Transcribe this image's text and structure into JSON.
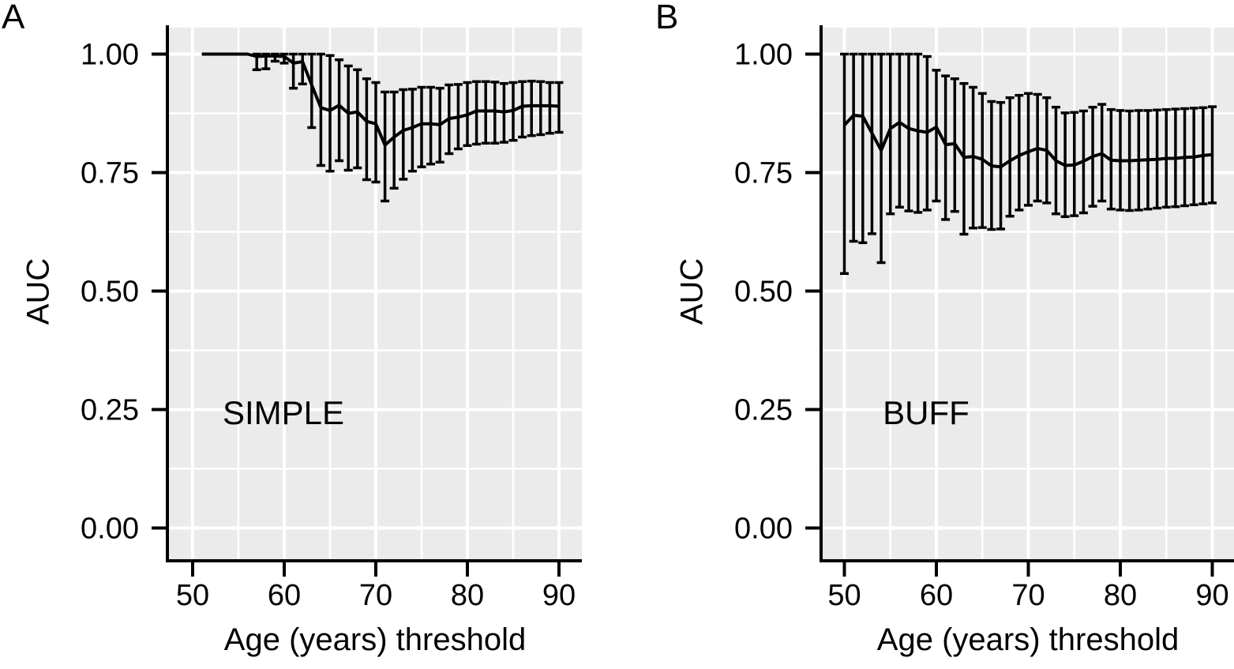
{
  "figure": {
    "background": "#ffffff",
    "panel_background": "#ebebeb",
    "gridline_color": "#ffffff",
    "line_color": "#000000",
    "text_color": "#000000"
  },
  "chart_data": [
    {
      "type": "line",
      "panel_label": "A",
      "annotation": "SIMPLE",
      "xlabel": "Age (years) threshold",
      "ylabel": "AUC",
      "x_tick_values": [
        50,
        60,
        70,
        80,
        90
      ],
      "x_minor_values": [
        55,
        65,
        75,
        85
      ],
      "y_tick_values": [
        0,
        0.25,
        0.5,
        0.75,
        1.0
      ],
      "y_tick_labels": [
        "0.00",
        "0.25",
        "0.50",
        "0.75",
        "1.00"
      ],
      "y_minor_values": [
        0.125,
        0.375,
        0.625,
        0.875
      ],
      "xlim": [
        50,
        90
      ],
      "ylim": [
        0,
        1
      ],
      "grid": true,
      "legend": "none",
      "error_bars": true,
      "points": [
        {
          "age": 51,
          "auc": 1.0,
          "lo": 1.0,
          "hi": 1.0
        },
        {
          "age": 52,
          "auc": 1.0,
          "lo": 1.0,
          "hi": 1.0
        },
        {
          "age": 53,
          "auc": 1.0,
          "lo": 1.0,
          "hi": 1.0
        },
        {
          "age": 54,
          "auc": 1.0,
          "lo": 1.0,
          "hi": 1.0
        },
        {
          "age": 55,
          "auc": 1.0,
          "lo": 1.0,
          "hi": 1.0
        },
        {
          "age": 56,
          "auc": 1.0,
          "lo": 1.0,
          "hi": 1.0
        },
        {
          "age": 57,
          "auc": 0.995,
          "lo": 0.967,
          "hi": 1.0
        },
        {
          "age": 58,
          "auc": 0.996,
          "lo": 0.969,
          "hi": 1.0
        },
        {
          "age": 59,
          "auc": 0.996,
          "lo": 0.985,
          "hi": 1.0
        },
        {
          "age": 60,
          "auc": 0.995,
          "lo": 0.981,
          "hi": 1.0
        },
        {
          "age": 61,
          "auc": 0.981,
          "lo": 0.928,
          "hi": 1.0
        },
        {
          "age": 62,
          "auc": 0.984,
          "lo": 0.937,
          "hi": 1.0
        },
        {
          "age": 63,
          "auc": 0.935,
          "lo": 0.845,
          "hi": 1.0
        },
        {
          "age": 64,
          "auc": 0.887,
          "lo": 0.765,
          "hi": 1.0
        },
        {
          "age": 65,
          "auc": 0.881,
          "lo": 0.753,
          "hi": 0.997
        },
        {
          "age": 66,
          "auc": 0.892,
          "lo": 0.775,
          "hi": 0.988
        },
        {
          "age": 67,
          "auc": 0.875,
          "lo": 0.755,
          "hi": 0.975
        },
        {
          "age": 68,
          "auc": 0.878,
          "lo": 0.76,
          "hi": 0.967
        },
        {
          "age": 69,
          "auc": 0.858,
          "lo": 0.735,
          "hi": 0.948
        },
        {
          "age": 70,
          "auc": 0.853,
          "lo": 0.73,
          "hi": 0.94
        },
        {
          "age": 71,
          "auc": 0.808,
          "lo": 0.69,
          "hi": 0.92
        },
        {
          "age": 72,
          "auc": 0.825,
          "lo": 0.717,
          "hi": 0.92
        },
        {
          "age": 73,
          "auc": 0.839,
          "lo": 0.736,
          "hi": 0.925
        },
        {
          "age": 74,
          "auc": 0.845,
          "lo": 0.753,
          "hi": 0.926
        },
        {
          "age": 75,
          "auc": 0.853,
          "lo": 0.762,
          "hi": 0.93
        },
        {
          "age": 76,
          "auc": 0.853,
          "lo": 0.768,
          "hi": 0.93
        },
        {
          "age": 77,
          "auc": 0.851,
          "lo": 0.772,
          "hi": 0.928
        },
        {
          "age": 78,
          "auc": 0.864,
          "lo": 0.79,
          "hi": 0.935
        },
        {
          "age": 79,
          "auc": 0.867,
          "lo": 0.8,
          "hi": 0.936
        },
        {
          "age": 80,
          "auc": 0.872,
          "lo": 0.807,
          "hi": 0.94
        },
        {
          "age": 81,
          "auc": 0.88,
          "lo": 0.81,
          "hi": 0.942
        },
        {
          "age": 82,
          "auc": 0.88,
          "lo": 0.812,
          "hi": 0.942
        },
        {
          "age": 83,
          "auc": 0.88,
          "lo": 0.812,
          "hi": 0.941
        },
        {
          "age": 84,
          "auc": 0.878,
          "lo": 0.814,
          "hi": 0.938
        },
        {
          "age": 85,
          "auc": 0.881,
          "lo": 0.818,
          "hi": 0.94
        },
        {
          "age": 86,
          "auc": 0.89,
          "lo": 0.825,
          "hi": 0.942
        },
        {
          "age": 87,
          "auc": 0.891,
          "lo": 0.828,
          "hi": 0.943
        },
        {
          "age": 88,
          "auc": 0.891,
          "lo": 0.83,
          "hi": 0.942
        },
        {
          "age": 89,
          "auc": 0.891,
          "lo": 0.833,
          "hi": 0.94
        },
        {
          "age": 90,
          "auc": 0.89,
          "lo": 0.835,
          "hi": 0.94
        }
      ]
    },
    {
      "type": "line",
      "panel_label": "B",
      "annotation": "BUFF",
      "xlabel": "Age (years) threshold",
      "ylabel": "AUC",
      "x_tick_values": [
        50,
        60,
        70,
        80,
        90
      ],
      "x_minor_values": [
        55,
        65,
        75,
        85
      ],
      "y_tick_values": [
        0,
        0.25,
        0.5,
        0.75,
        1.0
      ],
      "y_tick_labels": [
        "0.00",
        "0.25",
        "0.50",
        "0.75",
        "1.00"
      ],
      "y_minor_values": [
        0.125,
        0.375,
        0.625,
        0.875
      ],
      "xlim": [
        50,
        90
      ],
      "ylim": [
        0,
        1
      ],
      "grid": true,
      "legend": "none",
      "error_bars": true,
      "points": [
        {
          "age": 50,
          "auc": 0.85,
          "lo": 0.537,
          "hi": 1.0
        },
        {
          "age": 51,
          "auc": 0.871,
          "lo": 0.605,
          "hi": 1.0
        },
        {
          "age": 52,
          "auc": 0.869,
          "lo": 0.602,
          "hi": 1.0
        },
        {
          "age": 53,
          "auc": 0.833,
          "lo": 0.621,
          "hi": 1.0
        },
        {
          "age": 54,
          "auc": 0.797,
          "lo": 0.56,
          "hi": 1.0
        },
        {
          "age": 55,
          "auc": 0.843,
          "lo": 0.663,
          "hi": 1.0
        },
        {
          "age": 56,
          "auc": 0.856,
          "lo": 0.677,
          "hi": 1.0
        },
        {
          "age": 57,
          "auc": 0.843,
          "lo": 0.669,
          "hi": 1.0
        },
        {
          "age": 58,
          "auc": 0.838,
          "lo": 0.666,
          "hi": 1.0
        },
        {
          "age": 59,
          "auc": 0.835,
          "lo": 0.671,
          "hi": 0.995
        },
        {
          "age": 60,
          "auc": 0.846,
          "lo": 0.69,
          "hi": 0.966
        },
        {
          "age": 61,
          "auc": 0.809,
          "lo": 0.651,
          "hi": 0.954
        },
        {
          "age": 62,
          "auc": 0.811,
          "lo": 0.668,
          "hi": 0.948
        },
        {
          "age": 63,
          "auc": 0.782,
          "lo": 0.62,
          "hi": 0.938
        },
        {
          "age": 64,
          "auc": 0.784,
          "lo": 0.633,
          "hi": 0.93
        },
        {
          "age": 65,
          "auc": 0.778,
          "lo": 0.634,
          "hi": 0.917
        },
        {
          "age": 66,
          "auc": 0.764,
          "lo": 0.63,
          "hi": 0.9
        },
        {
          "age": 67,
          "auc": 0.762,
          "lo": 0.631,
          "hi": 0.898
        },
        {
          "age": 68,
          "auc": 0.775,
          "lo": 0.658,
          "hi": 0.908
        },
        {
          "age": 69,
          "auc": 0.786,
          "lo": 0.671,
          "hi": 0.913
        },
        {
          "age": 70,
          "auc": 0.794,
          "lo": 0.681,
          "hi": 0.917
        },
        {
          "age": 71,
          "auc": 0.801,
          "lo": 0.69,
          "hi": 0.915
        },
        {
          "age": 72,
          "auc": 0.797,
          "lo": 0.686,
          "hi": 0.908
        },
        {
          "age": 73,
          "auc": 0.775,
          "lo": 0.663,
          "hi": 0.888
        },
        {
          "age": 74,
          "auc": 0.765,
          "lo": 0.657,
          "hi": 0.876
        },
        {
          "age": 75,
          "auc": 0.766,
          "lo": 0.659,
          "hi": 0.877
        },
        {
          "age": 76,
          "auc": 0.774,
          "lo": 0.665,
          "hi": 0.88
        },
        {
          "age": 77,
          "auc": 0.784,
          "lo": 0.679,
          "hi": 0.888
        },
        {
          "age": 78,
          "auc": 0.79,
          "lo": 0.69,
          "hi": 0.894
        },
        {
          "age": 79,
          "auc": 0.776,
          "lo": 0.673,
          "hi": 0.883
        },
        {
          "age": 80,
          "auc": 0.775,
          "lo": 0.671,
          "hi": 0.881
        },
        {
          "age": 81,
          "auc": 0.775,
          "lo": 0.67,
          "hi": 0.88
        },
        {
          "age": 82,
          "auc": 0.776,
          "lo": 0.671,
          "hi": 0.881
        },
        {
          "age": 83,
          "auc": 0.777,
          "lo": 0.673,
          "hi": 0.881
        },
        {
          "age": 84,
          "auc": 0.778,
          "lo": 0.675,
          "hi": 0.882
        },
        {
          "age": 85,
          "auc": 0.78,
          "lo": 0.677,
          "hi": 0.883
        },
        {
          "age": 86,
          "auc": 0.78,
          "lo": 0.678,
          "hi": 0.884
        },
        {
          "age": 87,
          "auc": 0.782,
          "lo": 0.68,
          "hi": 0.885
        },
        {
          "age": 88,
          "auc": 0.783,
          "lo": 0.682,
          "hi": 0.886
        },
        {
          "age": 89,
          "auc": 0.786,
          "lo": 0.684,
          "hi": 0.887
        },
        {
          "age": 90,
          "auc": 0.788,
          "lo": 0.686,
          "hi": 0.889
        }
      ]
    }
  ]
}
